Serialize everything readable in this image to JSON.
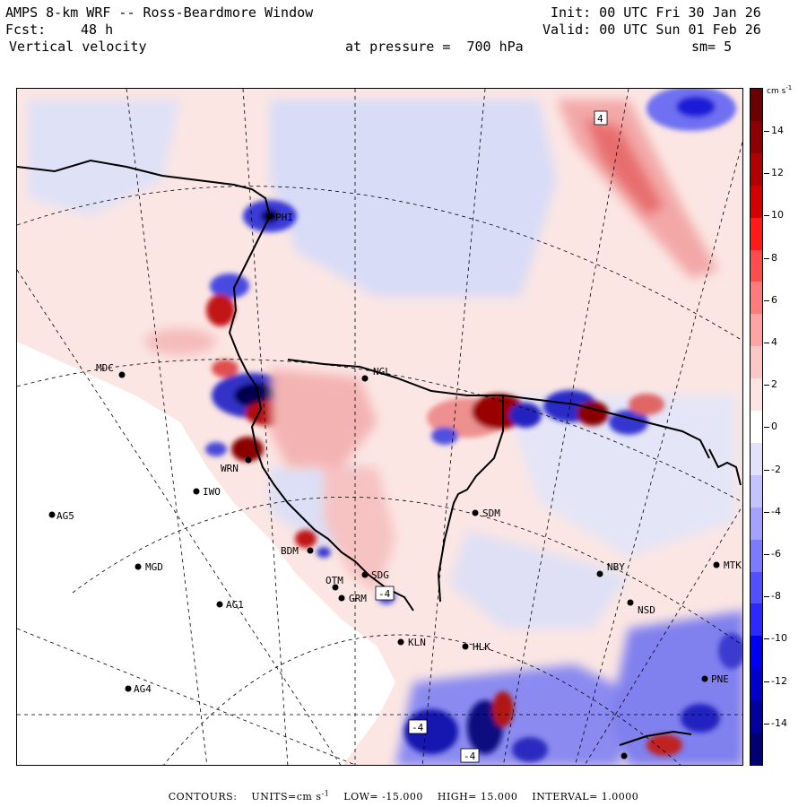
{
  "header": {
    "model": "AMPS 8-km WRF -- Ross-Beardmore Window",
    "init": "Init: 00 UTC Fri 30 Jan 26",
    "fcst_label": "Fcst:",
    "fcst_value": "48 h",
    "valid": "Valid: 00 UTC Sun 01 Feb 26",
    "variable": "Vertical velocity",
    "pressure": "at pressure =  700 hPa",
    "smoothing": "sm= 5"
  },
  "colorbar": {
    "units_label": "cm s",
    "units_exp": "-1",
    "ticks": [
      "14",
      "12",
      "10",
      "8",
      "6",
      "4",
      "2",
      "0",
      "-2",
      "-4",
      "-6",
      "-8",
      "-10",
      "-12",
      "-14"
    ],
    "colors": [
      "#6b0000",
      "#8b0000",
      "#b00000",
      "#d40000",
      "#ff1a1a",
      "#ff4d4d",
      "#ff7b7b",
      "#ffa3a3",
      "#ffc6c6",
      "#ffe3e3",
      "#ffffff",
      "#e2e2ff",
      "#c3c3ff",
      "#a3a3ff",
      "#7b7bff",
      "#5050ff",
      "#2a2aff",
      "#0000f0",
      "#0000c8",
      "#00009c",
      "#000070"
    ]
  },
  "stations": [
    {
      "name": "PHI"
    },
    {
      "name": "MDC"
    },
    {
      "name": "NGL"
    },
    {
      "name": "WRN"
    },
    {
      "name": "IWO"
    },
    {
      "name": "AG5"
    },
    {
      "name": "SDM"
    },
    {
      "name": "BDM"
    },
    {
      "name": "MGD"
    },
    {
      "name": "OTM"
    },
    {
      "name": "SDG"
    },
    {
      "name": "GRM"
    },
    {
      "name": "NBY"
    },
    {
      "name": "MTK"
    },
    {
      "name": "AG1"
    },
    {
      "name": "NSD"
    },
    {
      "name": "KLN"
    },
    {
      "name": "HLK"
    },
    {
      "name": "PNE"
    },
    {
      "name": "AG4"
    }
  ],
  "contour_boxes": [
    "4",
    "-4",
    "-4",
    "-4"
  ],
  "footer": {
    "contours": "CONTOURS:",
    "units": "UNITS=cm s",
    "units_exp": "-1",
    "low": "LOW= -15.000",
    "high": "HIGH= 15.000",
    "interval": "INTERVAL= 1.0000"
  }
}
